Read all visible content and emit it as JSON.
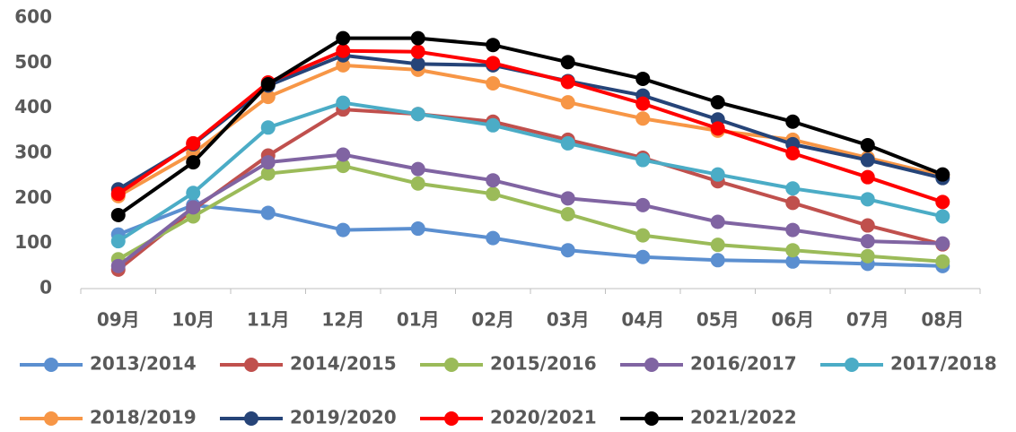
{
  "chart_data": {
    "type": "line",
    "categories": [
      "09月",
      "10月",
      "11月",
      "12月",
      "01月",
      "02月",
      "03月",
      "04月",
      "05月",
      "06月",
      "07月",
      "08月"
    ],
    "series": [
      {
        "name": "2013/2014",
        "color": "#5b8fd0",
        "values": [
          120,
          185,
          168,
          130,
          133,
          112,
          85,
          70,
          63,
          60,
          55,
          50
        ]
      },
      {
        "name": "2014/2015",
        "color": "#c0504d",
        "values": [
          42,
          175,
          295,
          397,
          387,
          370,
          330,
          290,
          238,
          190,
          140,
          98
        ]
      },
      {
        "name": "2015/2016",
        "color": "#9bbb59",
        "values": [
          65,
          160,
          255,
          272,
          233,
          210,
          165,
          118,
          97,
          85,
          72,
          60
        ]
      },
      {
        "name": "2016/2017",
        "color": "#8064a2",
        "values": [
          50,
          180,
          280,
          297,
          265,
          240,
          200,
          185,
          148,
          130,
          105,
          100
        ]
      },
      {
        "name": "2017/2018",
        "color": "#4bacc6",
        "values": [
          105,
          212,
          357,
          412,
          387,
          362,
          322,
          285,
          253,
          222,
          198,
          160
        ]
      },
      {
        "name": "2018/2019",
        "color": "#f79646",
        "values": [
          205,
          300,
          425,
          495,
          485,
          455,
          413,
          377,
          350,
          330,
          290,
          250
        ]
      },
      {
        "name": "2019/2020",
        "color": "#264478",
        "values": [
          220,
          320,
          450,
          517,
          498,
          495,
          460,
          428,
          375,
          320,
          285,
          245
        ]
      },
      {
        "name": "2020/2021",
        "color": "#ff0000",
        "values": [
          210,
          322,
          457,
          527,
          525,
          500,
          458,
          410,
          355,
          300,
          247,
          192
        ]
      },
      {
        "name": "2021/2022",
        "color": "#000000",
        "values": [
          163,
          280,
          453,
          555,
          555,
          540,
          502,
          465,
          413,
          370,
          318,
          253
        ]
      }
    ],
    "ylim": [
      0,
      600
    ],
    "yticks": [
      0,
      100,
      200,
      300,
      400,
      500,
      600
    ],
    "grid": false,
    "legend": "bottom"
  }
}
